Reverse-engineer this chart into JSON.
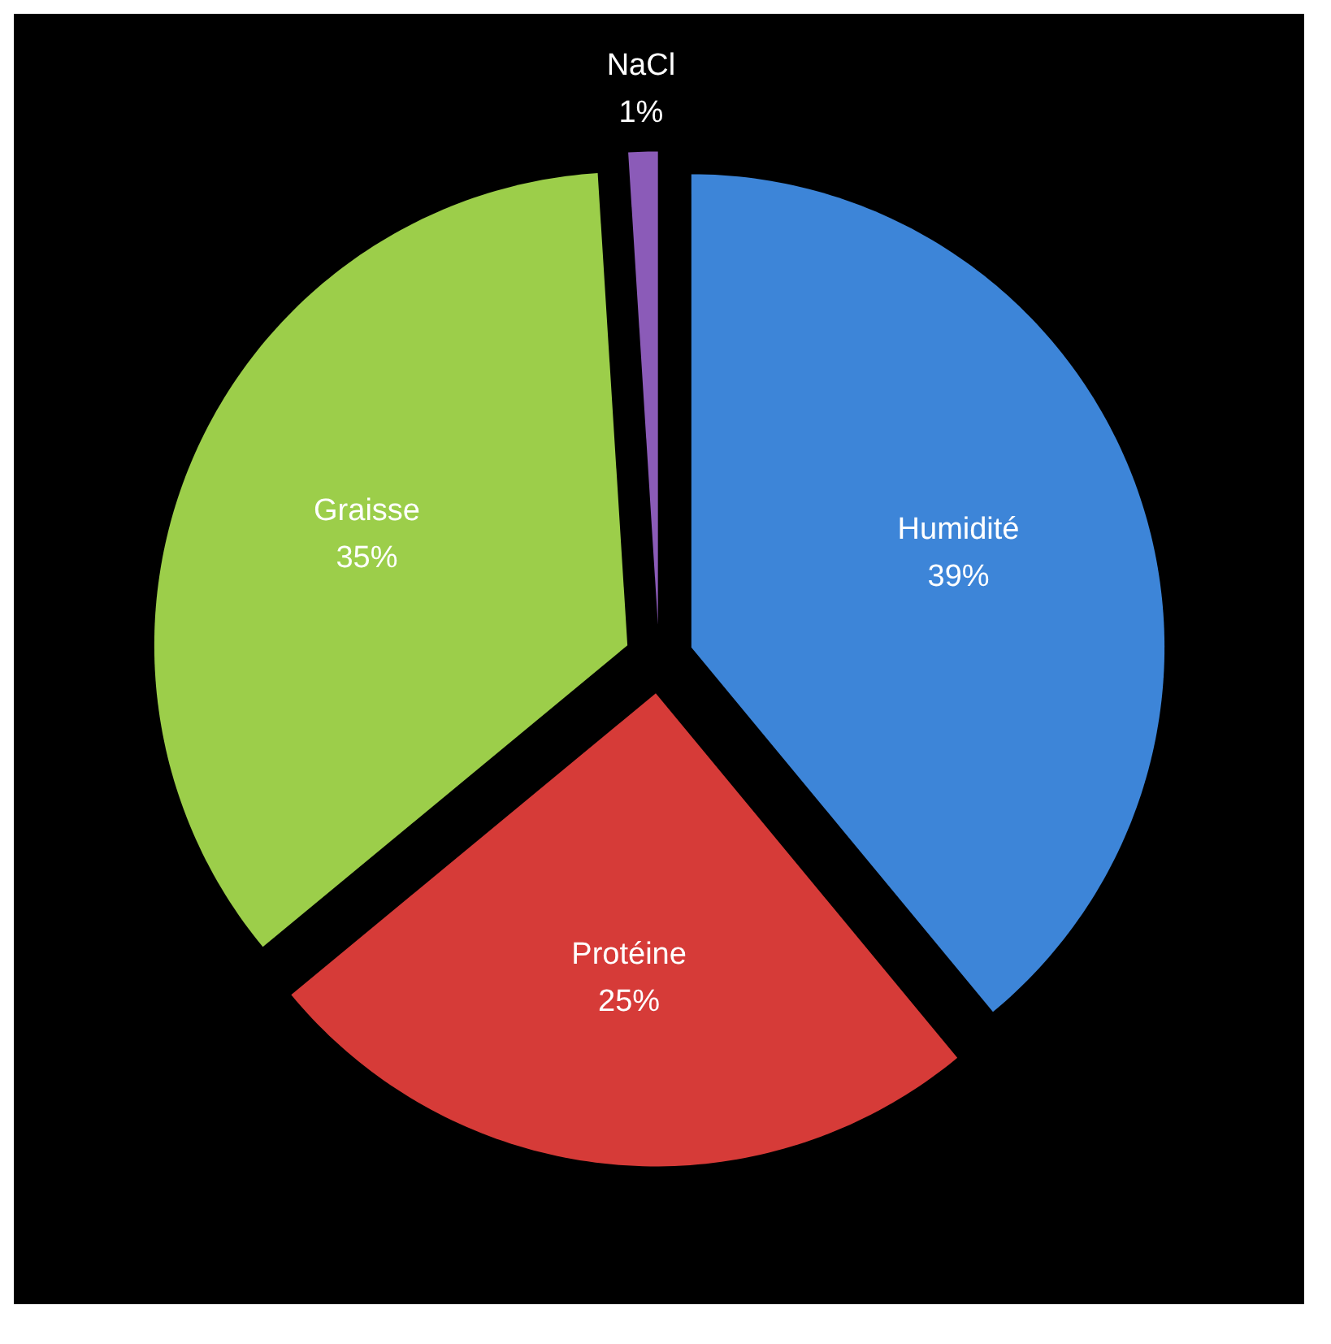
{
  "chart_data": {
    "type": "pie",
    "categories": [
      "Humidité",
      "Protéine",
      "Graisse",
      "NaCl"
    ],
    "values": [
      39,
      25,
      35,
      1
    ],
    "value_labels": [
      "39%",
      "25%",
      "35%",
      "1%"
    ],
    "colors": [
      "#3d85d8",
      "#d63b38",
      "#9cce4a",
      "#8b5bb8"
    ],
    "data_labels": true
  }
}
